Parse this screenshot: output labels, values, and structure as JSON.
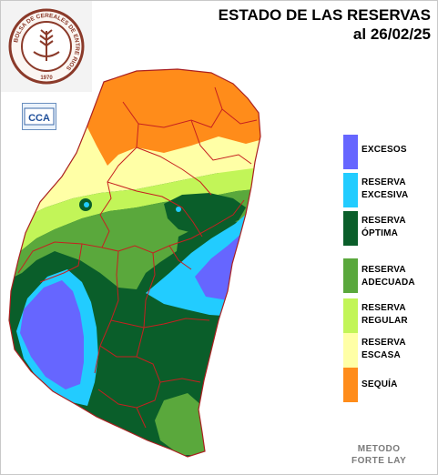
{
  "title": {
    "line1": "ESTADO DE LAS RESERVAS",
    "line2": "al 26/02/25"
  },
  "logo": {
    "text": "BOLSA DE CEREALES DE ENTRE RIOS",
    "year": "1970",
    "ring_color": "#8b3a2a"
  },
  "badge": {
    "text": "CCA"
  },
  "legend": [
    {
      "label": "EXCESOS",
      "color": "#6666ff"
    },
    {
      "label": "RESERVA\nEXCESIVA",
      "color": "#22ccff"
    },
    {
      "label": "RESERVA\nÓPTIMA",
      "color": "#0a5e2a"
    },
    {
      "label": "RESERVA\nADECUADA",
      "color": "#5aa83c"
    },
    {
      "label": "RESERVA\nREGULAR",
      "color": "#c2f558"
    },
    {
      "label": "RESERVA\nESCASA",
      "color": "#ffffa6"
    },
    {
      "label": "SEQUÍA",
      "color": "#ff8c1a"
    }
  ],
  "method": "METODO\nFORTE LAY",
  "colors": {
    "department_lines": "#c62020",
    "province_outline": "#aa2020"
  }
}
